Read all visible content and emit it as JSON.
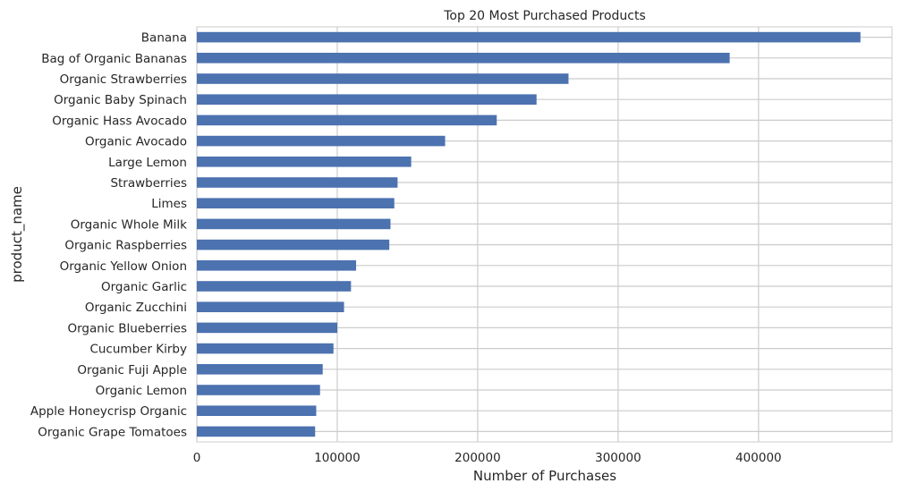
{
  "chart_data": {
    "type": "bar",
    "orientation": "horizontal",
    "title": "Top 20 Most Purchased Products",
    "xlabel": "Number of Purchases",
    "ylabel": "product_name",
    "xlim": [
      0,
      495000
    ],
    "xticks": [
      0,
      100000,
      200000,
      300000,
      400000
    ],
    "grid": true,
    "bar_color": "#4c72b0",
    "categories": [
      "Banana",
      "Bag of Organic Bananas",
      "Organic Strawberries",
      "Organic Baby Spinach",
      "Organic Hass Avocado",
      "Organic Avocado",
      "Large Lemon",
      "Strawberries",
      "Limes",
      "Organic Whole Milk",
      "Organic Raspberries",
      "Organic Yellow Onion",
      "Organic Garlic",
      "Organic Zucchini",
      "Organic Blueberries",
      "Cucumber Kirby",
      "Organic Fuji Apple",
      "Organic Lemon",
      "Apple Honeycrisp Organic",
      "Organic Grape Tomatoes"
    ],
    "values": [
      472565,
      379450,
      264683,
      241921,
      213584,
      176815,
      152657,
      142951,
      140627,
      137905,
      137057,
      113426,
      109778,
      104823,
      100060,
      97315,
      89632,
      87746,
      85020,
      84255
    ]
  }
}
